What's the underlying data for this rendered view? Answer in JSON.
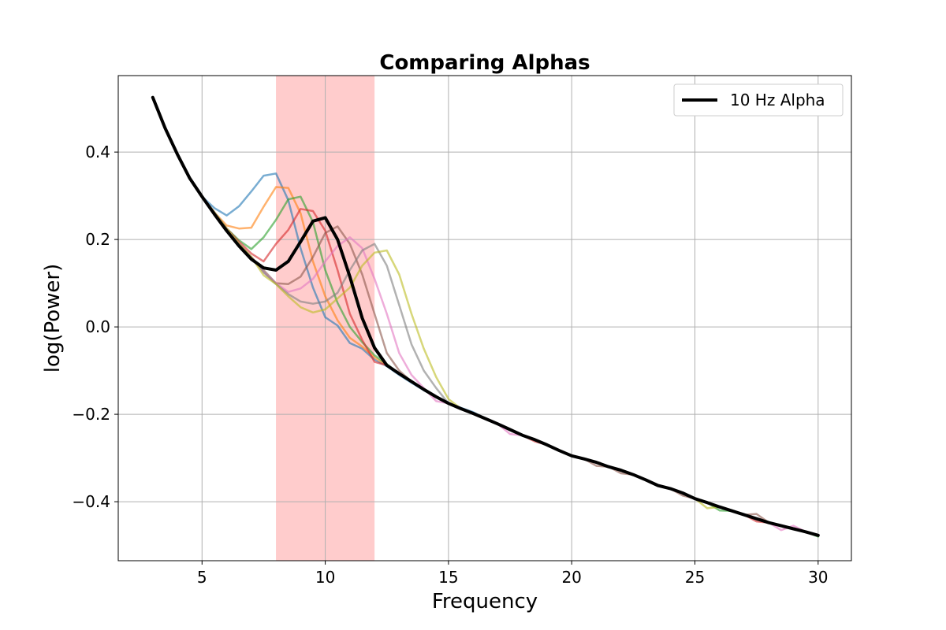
{
  "chart_data": {
    "type": "line",
    "title": "Comparing Alphas",
    "xlabel": "Frequency",
    "ylabel": "log(Power)",
    "xlim": [
      1.6,
      31.35
    ],
    "ylim": [
      -0.535,
      0.575
    ],
    "xticks": [
      5,
      10,
      15,
      20,
      25,
      30
    ],
    "xtick_labels": [
      "5",
      "10",
      "15",
      "20",
      "25",
      "30"
    ],
    "yticks": [
      -0.4,
      -0.2,
      0.0,
      0.2,
      0.4
    ],
    "ytick_labels": [
      "−0.4",
      "−0.2",
      "0.0",
      "0.2",
      "0.4"
    ],
    "grid": true,
    "highlight_band": {
      "x_range": [
        8,
        12
      ],
      "color": "#ffcccc"
    },
    "legend": {
      "location": "upper right",
      "entries": [
        "10 Hz Alpha"
      ]
    },
    "x": [
      3,
      3.5,
      4,
      4.5,
      5,
      5.5,
      6,
      6.5,
      7,
      7.5,
      8,
      8.5,
      9,
      9.5,
      10,
      10.5,
      11,
      11.5,
      12,
      12.5,
      13,
      13.5,
      14,
      14.5,
      15,
      15.5,
      16,
      16.5,
      17,
      17.5,
      18,
      18.5,
      19,
      19.5,
      20,
      20.5,
      21,
      21.5,
      22,
      22.5,
      23,
      23.5,
      24,
      24.5,
      25,
      25.5,
      26,
      26.5,
      27,
      27.5,
      28,
      28.5,
      29,
      29.5,
      30
    ],
    "series": [
      {
        "color": "#1f77b4",
        "opacity": 0.6,
        "width": 2.5,
        "y": [
          0.525,
          0.455,
          0.395,
          0.34,
          0.298,
          0.272,
          0.255,
          0.276,
          0.31,
          0.346,
          0.351,
          0.29,
          0.18,
          0.09,
          0.022,
          0.003,
          -0.037,
          -0.05,
          -0.075,
          -0.09,
          -0.11,
          -0.128,
          -0.145,
          -0.16,
          -0.175,
          -0.185,
          -0.195,
          -0.21,
          -0.222,
          -0.235,
          -0.248,
          -0.258,
          -0.27,
          -0.283,
          -0.295,
          -0.302,
          -0.31,
          -0.32,
          -0.328,
          -0.338,
          -0.35,
          -0.363,
          -0.37,
          -0.38,
          -0.393,
          -0.402,
          -0.412,
          -0.421,
          -0.43,
          -0.439,
          -0.448,
          -0.455,
          -0.462,
          -0.469,
          -0.477
        ]
      },
      {
        "color": "#ff7f0e",
        "opacity": 0.6,
        "width": 2.5,
        "y": [
          0.525,
          0.455,
          0.395,
          0.34,
          0.298,
          0.262,
          0.232,
          0.225,
          0.227,
          0.275,
          0.32,
          0.318,
          0.26,
          0.15,
          0.07,
          0.015,
          -0.025,
          -0.045,
          -0.07,
          -0.088,
          -0.108,
          -0.126,
          -0.143,
          -0.16,
          -0.175,
          -0.187,
          -0.198,
          -0.21,
          -0.222,
          -0.235,
          -0.248,
          -0.258,
          -0.27,
          -0.283,
          -0.295,
          -0.302,
          -0.31,
          -0.32,
          -0.328,
          -0.338,
          -0.35,
          -0.363,
          -0.37,
          -0.38,
          -0.393,
          -0.402,
          -0.412,
          -0.421,
          -0.43,
          -0.439,
          -0.448,
          -0.455,
          -0.462,
          -0.469,
          -0.477
        ]
      },
      {
        "color": "#2ca02c",
        "opacity": 0.6,
        "width": 2.5,
        "y": [
          0.525,
          0.455,
          0.395,
          0.34,
          0.298,
          0.262,
          0.225,
          0.198,
          0.178,
          0.205,
          0.245,
          0.292,
          0.298,
          0.24,
          0.13,
          0.055,
          0.0,
          -0.035,
          -0.065,
          -0.085,
          -0.107,
          -0.125,
          -0.143,
          -0.16,
          -0.175,
          -0.187,
          -0.198,
          -0.21,
          -0.222,
          -0.235,
          -0.248,
          -0.258,
          -0.27,
          -0.283,
          -0.295,
          -0.302,
          -0.31,
          -0.32,
          -0.328,
          -0.338,
          -0.35,
          -0.363,
          -0.37,
          -0.38,
          -0.393,
          -0.402,
          -0.42,
          -0.421,
          -0.43,
          -0.439,
          -0.448,
          -0.455,
          -0.462,
          -0.469,
          -0.48
        ]
      },
      {
        "color": "#d62728",
        "opacity": 0.6,
        "width": 2.5,
        "y": [
          0.525,
          0.455,
          0.395,
          0.34,
          0.298,
          0.262,
          0.225,
          0.195,
          0.168,
          0.15,
          0.19,
          0.222,
          0.27,
          0.265,
          0.22,
          0.13,
          0.03,
          -0.03,
          -0.08,
          -0.088,
          -0.107,
          -0.125,
          -0.143,
          -0.16,
          -0.175,
          -0.187,
          -0.198,
          -0.21,
          -0.222,
          -0.235,
          -0.248,
          -0.262,
          -0.27,
          -0.283,
          -0.295,
          -0.302,
          -0.31,
          -0.32,
          -0.328,
          -0.338,
          -0.35,
          -0.363,
          -0.37,
          -0.38,
          -0.393,
          -0.402,
          -0.412,
          -0.421,
          -0.43,
          -0.445,
          -0.448,
          -0.455,
          -0.462,
          -0.469,
          -0.477
        ]
      },
      {
        "color": "#8c564b",
        "opacity": 0.6,
        "width": 2.5,
        "y": [
          0.525,
          0.455,
          0.395,
          0.34,
          0.298,
          0.262,
          0.225,
          0.19,
          0.16,
          0.13,
          0.1,
          0.098,
          0.115,
          0.16,
          0.215,
          0.23,
          0.19,
          0.12,
          0.03,
          -0.06,
          -0.1,
          -0.125,
          -0.143,
          -0.16,
          -0.175,
          -0.187,
          -0.198,
          -0.21,
          -0.222,
          -0.235,
          -0.248,
          -0.258,
          -0.27,
          -0.283,
          -0.295,
          -0.302,
          -0.318,
          -0.32,
          -0.335,
          -0.338,
          -0.35,
          -0.363,
          -0.37,
          -0.386,
          -0.393,
          -0.402,
          -0.412,
          -0.421,
          -0.43,
          -0.428,
          -0.448,
          -0.455,
          -0.462,
          -0.469,
          -0.477
        ]
      },
      {
        "color": "#e377c2",
        "opacity": 0.6,
        "width": 2.5,
        "y": [
          0.525,
          0.455,
          0.395,
          0.34,
          0.298,
          0.262,
          0.225,
          0.19,
          0.16,
          0.125,
          0.1,
          0.08,
          0.088,
          0.11,
          0.15,
          0.185,
          0.205,
          0.18,
          0.11,
          0.03,
          -0.06,
          -0.11,
          -0.14,
          -0.17,
          -0.175,
          -0.187,
          -0.198,
          -0.21,
          -0.222,
          -0.245,
          -0.248,
          -0.258,
          -0.27,
          -0.283,
          -0.295,
          -0.302,
          -0.31,
          -0.32,
          -0.328,
          -0.338,
          -0.35,
          -0.363,
          -0.37,
          -0.38,
          -0.393,
          -0.402,
          -0.412,
          -0.421,
          -0.43,
          -0.439,
          -0.448,
          -0.465,
          -0.455,
          -0.469,
          -0.477
        ]
      },
      {
        "color": "#7f7f7f",
        "opacity": 0.6,
        "width": 2.5,
        "y": [
          0.525,
          0.455,
          0.395,
          0.34,
          0.298,
          0.262,
          0.225,
          0.19,
          0.16,
          0.125,
          0.098,
          0.075,
          0.058,
          0.053,
          0.058,
          0.078,
          0.13,
          0.175,
          0.19,
          0.14,
          0.05,
          -0.04,
          -0.1,
          -0.14,
          -0.175,
          -0.187,
          -0.198,
          -0.21,
          -0.222,
          -0.235,
          -0.248,
          -0.258,
          -0.27,
          -0.283,
          -0.295,
          -0.302,
          -0.31,
          -0.32,
          -0.328,
          -0.338,
          -0.35,
          -0.363,
          -0.37,
          -0.38,
          -0.393,
          -0.402,
          -0.412,
          -0.421,
          -0.43,
          -0.439,
          -0.448,
          -0.455,
          -0.462,
          -0.469,
          -0.477
        ]
      },
      {
        "color": "#bcbd22",
        "opacity": 0.6,
        "width": 2.5,
        "y": [
          0.525,
          0.455,
          0.395,
          0.34,
          0.298,
          0.262,
          0.225,
          0.19,
          0.16,
          0.118,
          0.098,
          0.07,
          0.045,
          0.033,
          0.04,
          0.065,
          0.09,
          0.14,
          0.17,
          0.175,
          0.12,
          0.03,
          -0.05,
          -0.115,
          -0.165,
          -0.187,
          -0.198,
          -0.21,
          -0.222,
          -0.235,
          -0.248,
          -0.258,
          -0.27,
          -0.283,
          -0.295,
          -0.302,
          -0.31,
          -0.32,
          -0.328,
          -0.338,
          -0.35,
          -0.363,
          -0.37,
          -0.38,
          -0.393,
          -0.415,
          -0.412,
          -0.421,
          -0.43,
          -0.439,
          -0.448,
          -0.455,
          -0.462,
          -0.469,
          -0.477
        ]
      },
      {
        "name": "10 Hz Alpha",
        "color": "#000000",
        "opacity": 1,
        "width": 4,
        "y": [
          0.525,
          0.455,
          0.395,
          0.34,
          0.298,
          0.258,
          0.22,
          0.185,
          0.155,
          0.135,
          0.13,
          0.15,
          0.195,
          0.242,
          0.25,
          0.2,
          0.115,
          0.02,
          -0.048,
          -0.088,
          -0.107,
          -0.125,
          -0.143,
          -0.16,
          -0.175,
          -0.187,
          -0.198,
          -0.21,
          -0.222,
          -0.235,
          -0.248,
          -0.258,
          -0.27,
          -0.283,
          -0.295,
          -0.302,
          -0.31,
          -0.32,
          -0.328,
          -0.338,
          -0.35,
          -0.363,
          -0.37,
          -0.38,
          -0.393,
          -0.402,
          -0.412,
          -0.421,
          -0.43,
          -0.439,
          -0.448,
          -0.455,
          -0.462,
          -0.469,
          -0.477
        ]
      }
    ]
  }
}
